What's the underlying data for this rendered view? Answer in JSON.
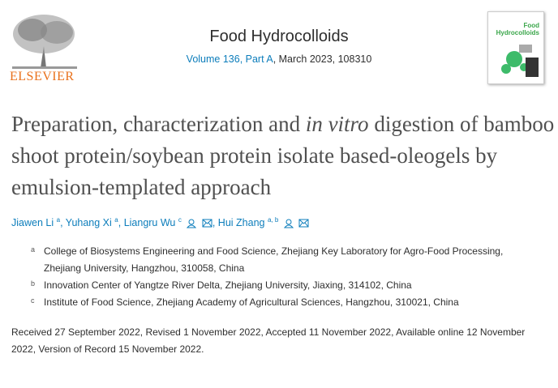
{
  "publisher": {
    "name": "ELSEVIER"
  },
  "journal": {
    "name": "Food Hydrocolloids",
    "volume_link": "Volume 136, Part A",
    "issue_rest": ", March 2023, 108310",
    "cover_title": "Food Hydrocolloids"
  },
  "article": {
    "title_part1": "Preparation, characterization and ",
    "title_italic": "in vitro",
    "title_part2": " digestion of bamboo shoot protein/soybean protein isolate based-oleogels by emulsion-templated approach"
  },
  "authors": [
    {
      "name": "Jiawen Li",
      "sup": "a"
    },
    {
      "name": "Yuhang Xi",
      "sup": "a"
    },
    {
      "name": "Liangru Wu",
      "sup": "c"
    },
    {
      "name": "Hui Zhang",
      "sup": "a, b"
    }
  ],
  "affiliations": [
    {
      "label": "a",
      "text": "College of Biosystems Engineering and Food Science, Zhejiang Key Laboratory for Agro-Food Processing, Zhejiang University, Hangzhou, 310058, China"
    },
    {
      "label": "b",
      "text": "Innovation Center of Yangtze River Delta, Zhejiang University, Jiaxing, 314102, China"
    },
    {
      "label": "c",
      "text": "Institute of Food Science, Zhejiang Academy of Agricultural Sciences, Hangzhou, 310021, China"
    }
  ],
  "dates": "Received 27 September 2022, Revised 1 November 2022, Accepted 11 November 2022, Available online 12 November 2022, Version of Record 15 November 2022.",
  "colors": {
    "link": "#0c7dbb",
    "elsevier": "#e9711c"
  }
}
